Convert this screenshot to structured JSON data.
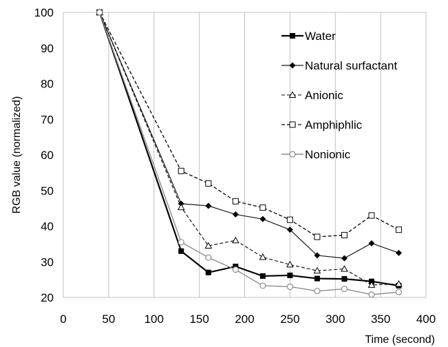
{
  "chart_data": {
    "type": "line",
    "xlabel": "Time (second)",
    "ylabel": "RGB value (normalized)",
    "xlim": [
      0,
      400
    ],
    "ylim": [
      20,
      100
    ],
    "xticks": [
      0,
      50,
      100,
      150,
      200,
      250,
      300,
      350,
      400
    ],
    "yticks": [
      20,
      30,
      40,
      50,
      60,
      70,
      80,
      90,
      100
    ],
    "grid": "vertical",
    "legend_position": "top-right",
    "x": [
      40,
      130,
      160,
      190,
      220,
      250,
      280,
      310,
      340,
      370
    ],
    "series": [
      {
        "name": "Water",
        "line": "solid",
        "color": "#000000",
        "width": 2.2,
        "marker": "square-filled",
        "values": [
          100,
          33,
          27,
          28.7,
          26,
          26.2,
          25.3,
          25.2,
          24.5,
          23.3
        ]
      },
      {
        "name": "Natural surfactant",
        "line": "solid",
        "color": "#1a1a1a",
        "width": 1.2,
        "marker": "diamond-filled",
        "values": [
          100,
          46.3,
          45.7,
          43.3,
          42,
          39,
          31.8,
          31,
          35.2,
          32.5
        ]
      },
      {
        "name": "Anionic",
        "line": "dashed",
        "color": "#000000",
        "width": 1.1,
        "marker": "triangle-open",
        "values": [
          100,
          45.3,
          34.5,
          36,
          31.3,
          29.2,
          27.5,
          28,
          23.5,
          23.8
        ]
      },
      {
        "name": "Amphiphlic",
        "line": "dashed",
        "color": "#000000",
        "width": 1.3,
        "marker": "square-open",
        "values": [
          100,
          55.5,
          52,
          47,
          45.2,
          41.8,
          37,
          37.5,
          43,
          39
        ]
      },
      {
        "name": "Nonionic",
        "line": "solid",
        "color": "#8c8c8c",
        "width": 1.4,
        "marker": "circle-open",
        "values": [
          100,
          35.5,
          31.2,
          27.8,
          23.3,
          23,
          21.8,
          22.4,
          20.8,
          21.5
        ]
      }
    ]
  }
}
